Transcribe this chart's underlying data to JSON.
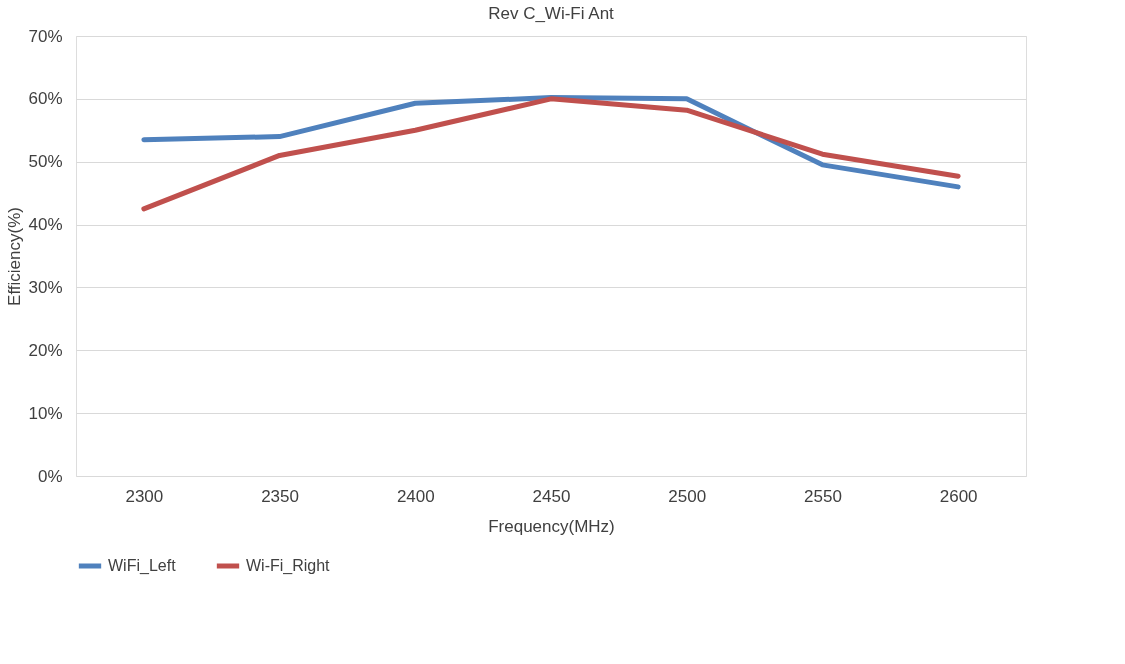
{
  "chart_data": {
    "type": "line",
    "title": "Rev C_Wi-Fi Ant",
    "xlabel": "Frequency(MHz)",
    "ylabel": "Efficiency(%)",
    "categories": [
      "2300",
      "2350",
      "2400",
      "2450",
      "2500",
      "2550",
      "2600"
    ],
    "series": [
      {
        "name": "WiFi_Left",
        "color": "#4f81bd",
        "values": [
          53.5,
          54,
          59.3,
          60.2,
          60,
          49.5,
          46
        ]
      },
      {
        "name": "Wi-Fi_Right",
        "color": "#c0504d",
        "values": [
          42.5,
          51,
          55,
          60,
          58.2,
          51.2,
          47.7
        ]
      }
    ],
    "ylim": [
      0,
      70
    ],
    "yticks": [
      {
        "value": 0,
        "label": "0%"
      },
      {
        "value": 10,
        "label": "10%"
      },
      {
        "value": 20,
        "label": "20%"
      },
      {
        "value": 30,
        "label": "30%"
      },
      {
        "value": 40,
        "label": "40%"
      },
      {
        "value": 50,
        "label": "50%"
      },
      {
        "value": 60,
        "label": "60%"
      },
      {
        "value": 70,
        "label": "70%"
      }
    ],
    "grid": "y",
    "legend": "bottom",
    "marker": "none",
    "line_style": "solid"
  }
}
